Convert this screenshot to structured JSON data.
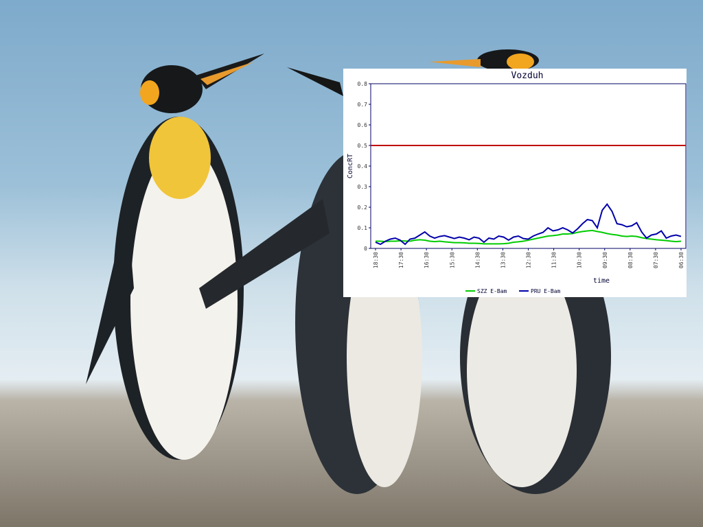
{
  "background": {
    "description_icon": "penguin-photo",
    "sky_color": "#8fb4cf",
    "sand_color": "#8c8375"
  },
  "chart_data": {
    "type": "line",
    "title": "Vozduh",
    "xlabel": "time",
    "ylabel": "ConcRT",
    "ylim": [
      0,
      0.8
    ],
    "yticks": [
      "0",
      "0.1",
      "0.2",
      "0.3",
      "0.4",
      "0.5",
      "0.6",
      "0.7",
      "0.8"
    ],
    "xticks": [
      "18:30",
      "17:30",
      "16:30",
      "15:30",
      "14:30",
      "13:30",
      "12:30",
      "11:30",
      "10:30",
      "09:30",
      "08:30",
      "07:30",
      "06:30"
    ],
    "grid": false,
    "legend_position": "bottom",
    "threshold": {
      "value": 0.5,
      "color": "#c00000"
    },
    "series": [
      {
        "name": "SZZ E-Bam",
        "color": "#00cc00",
        "values": [
          0.035,
          0.035,
          0.033,
          0.035,
          0.035,
          0.037,
          0.036,
          0.035,
          0.04,
          0.042,
          0.04,
          0.035,
          0.033,
          0.035,
          0.032,
          0.03,
          0.028,
          0.028,
          0.027,
          0.025,
          0.025,
          0.024,
          0.022,
          0.022,
          0.022,
          0.022,
          0.023,
          0.025,
          0.03,
          0.032,
          0.035,
          0.04,
          0.045,
          0.05,
          0.055,
          0.06,
          0.062,
          0.065,
          0.07,
          0.07,
          0.072,
          0.078,
          0.082,
          0.085,
          0.087,
          0.082,
          0.078,
          0.072,
          0.068,
          0.065,
          0.06,
          0.058,
          0.06,
          0.058,
          0.052,
          0.048,
          0.045,
          0.042,
          0.04,
          0.038,
          0.035,
          0.033,
          0.035
        ]
      },
      {
        "name": "PRU E-Bam",
        "color": "#0000aa",
        "values": [
          0.03,
          0.02,
          0.035,
          0.045,
          0.05,
          0.04,
          0.02,
          0.045,
          0.05,
          0.065,
          0.08,
          0.06,
          0.05,
          0.058,
          0.062,
          0.055,
          0.048,
          0.055,
          0.05,
          0.042,
          0.055,
          0.05,
          0.03,
          0.05,
          0.045,
          0.06,
          0.055,
          0.04,
          0.055,
          0.06,
          0.048,
          0.045,
          0.06,
          0.07,
          0.078,
          0.1,
          0.085,
          0.09,
          0.1,
          0.09,
          0.075,
          0.095,
          0.12,
          0.14,
          0.135,
          0.1,
          0.185,
          0.215,
          0.18,
          0.12,
          0.115,
          0.105,
          0.11,
          0.125,
          0.08,
          0.05,
          0.065,
          0.07,
          0.085,
          0.05,
          0.06,
          0.065,
          0.058
        ]
      }
    ]
  }
}
